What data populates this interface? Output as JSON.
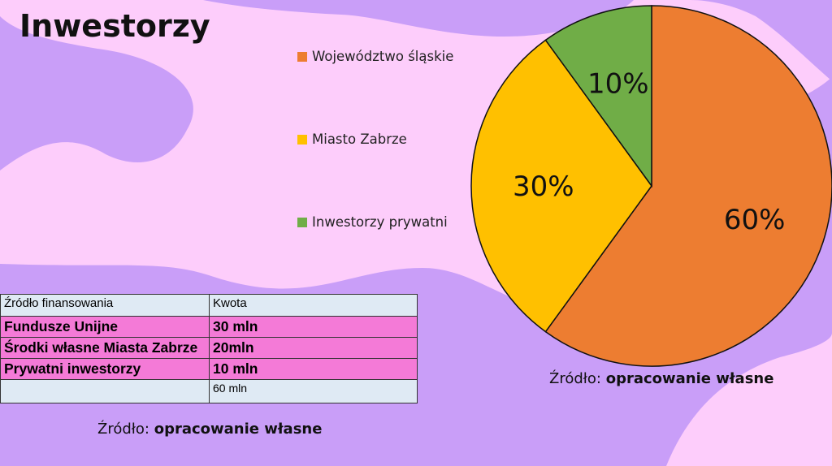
{
  "slide": {
    "title": "Inwestorzy",
    "source_label": "Źródło:",
    "source_value": "opracowanie własne"
  },
  "colors": {
    "background_purple": "#c99ef8",
    "background_pink": "#fdcdfb",
    "table_pink": "#f47ad7",
    "table_header": "#dfeaf4"
  },
  "chart_data": {
    "type": "pie",
    "categories": [
      "Województwo śląskie",
      "Miasto Zabrze",
      "Inwestorzy prywatni"
    ],
    "values": [
      60,
      30,
      10
    ],
    "labels": [
      "60%",
      "30%",
      "10%"
    ],
    "colors": [
      "#ed7d31",
      "#ffc000",
      "#70ad47"
    ],
    "legend_position": "left",
    "start": "top, clockwise"
  },
  "table": {
    "headers": [
      "Źródło finansowania",
      "Kwota"
    ],
    "rows": [
      [
        "Fundusze Unijne",
        "30 mln"
      ],
      [
        "Środki własne Miasta Zabrze",
        "20mln"
      ],
      [
        "Prywatni inwestorzy",
        "10 mln"
      ]
    ],
    "total": [
      "",
      "60 mln"
    ]
  }
}
